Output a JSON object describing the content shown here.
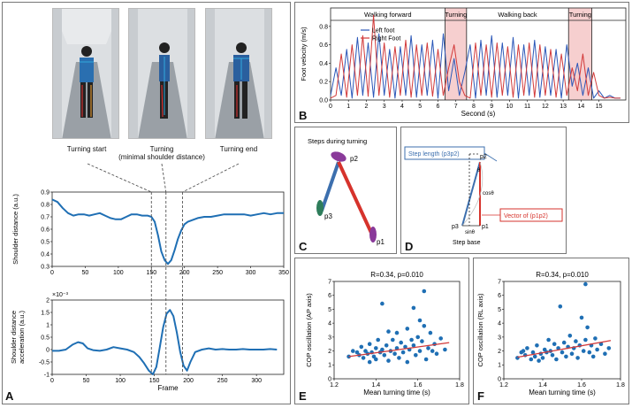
{
  "figure": {
    "panels": {
      "a": {
        "letter": "A",
        "photo_captions": [
          "Turning start",
          "Turning",
          "(minimal shoulder distance)",
          "Turning end"
        ]
      },
      "b": {
        "letter": "B"
      },
      "c": {
        "letter": "C"
      },
      "d": {
        "letter": "D"
      },
      "e": {
        "letter": "E"
      },
      "f": {
        "letter": "F"
      }
    }
  },
  "chart_data": [
    {
      "id": "shoulder-distance",
      "type": "line",
      "ylabel": "Shoulder distance (a.u.)",
      "xlabel": "",
      "xlim": [
        0,
        350
      ],
      "ylim": [
        0.3,
        0.9
      ],
      "xticks": [
        0,
        50,
        100,
        150,
        200,
        250,
        300,
        350
      ],
      "yticks": [
        0.3,
        0.4,
        0.5,
        0.6,
        0.7,
        0.8,
        0.9
      ],
      "line_color": "#1f6fb4",
      "x": [
        0,
        8,
        16,
        24,
        32,
        40,
        48,
        56,
        64,
        72,
        80,
        88,
        96,
        104,
        112,
        120,
        128,
        136,
        144,
        150,
        155,
        160,
        165,
        170,
        175,
        180,
        185,
        190,
        195,
        200,
        205,
        210,
        220,
        230,
        240,
        250,
        260,
        270,
        280,
        290,
        300,
        310,
        320,
        330,
        340,
        350
      ],
      "y": [
        0.84,
        0.82,
        0.77,
        0.73,
        0.71,
        0.72,
        0.72,
        0.71,
        0.72,
        0.73,
        0.71,
        0.69,
        0.68,
        0.68,
        0.7,
        0.72,
        0.72,
        0.71,
        0.71,
        0.7,
        0.66,
        0.55,
        0.42,
        0.35,
        0.32,
        0.35,
        0.43,
        0.52,
        0.59,
        0.64,
        0.66,
        0.67,
        0.69,
        0.7,
        0.7,
        0.71,
        0.72,
        0.72,
        0.72,
        0.72,
        0.71,
        0.72,
        0.73,
        0.72,
        0.73,
        0.73
      ]
    },
    {
      "id": "shoulder-acceleration",
      "type": "line",
      "ylabel": "Shoulder distance acceleration (a.u.)",
      "xlabel": "Frame",
      "exponent_label": "×10⁻³",
      "xlim": [
        0,
        340
      ],
      "ylim": [
        -1,
        2
      ],
      "xticks": [
        0,
        50,
        100,
        150,
        200,
        250,
        300
      ],
      "yticks": [
        -1,
        -0.5,
        0,
        0.5,
        1,
        1.5,
        2
      ],
      "line_color": "#1f6fb4",
      "x": [
        0,
        10,
        20,
        30,
        38,
        45,
        52,
        60,
        70,
        80,
        90,
        100,
        110,
        120,
        128,
        135,
        142,
        148,
        153,
        158,
        163,
        168,
        173,
        178,
        183,
        188,
        193,
        198,
        203,
        210,
        220,
        230,
        240,
        250,
        260,
        270,
        280,
        290,
        300,
        310,
        320,
        330
      ],
      "y": [
        -0.05,
        -0.05,
        0.0,
        0.2,
        0.3,
        0.25,
        0.05,
        -0.02,
        -0.05,
        0.0,
        0.1,
        0.05,
        0.0,
        -0.1,
        -0.3,
        -0.55,
        -0.85,
        -1.0,
        -0.7,
        0.1,
        0.9,
        1.45,
        1.6,
        1.35,
        0.7,
        -0.1,
        -0.65,
        -0.85,
        -0.5,
        -0.1,
        0.0,
        0.05,
        0.0,
        0.02,
        0.0,
        0.0,
        0.02,
        0.0,
        0.0,
        0.0,
        0.02,
        0.0
      ]
    },
    {
      "id": "foot-velocity",
      "type": "line",
      "ylabel": "Foot velocity (m/s)",
      "xlabel": "Second (s)",
      "xlim": [
        0,
        16.5
      ],
      "ylim": [
        0,
        1
      ],
      "xticks": [
        0,
        1,
        2,
        3,
        4,
        5,
        6,
        7,
        8,
        9,
        10,
        11,
        12,
        13,
        14,
        15
      ],
      "yticks": [
        0,
        0.2,
        0.4,
        0.6,
        0.8
      ],
      "phases": [
        {
          "label": "Walking forward",
          "start": 0,
          "end": 6.4,
          "shaded": false
        },
        {
          "label": "Turning",
          "start": 6.4,
          "end": 7.6,
          "shaded": true
        },
        {
          "label": "Walking back",
          "start": 7.6,
          "end": 13.3,
          "shaded": false
        },
        {
          "label": "Turning",
          "start": 13.3,
          "end": 14.6,
          "shaded": true
        }
      ],
      "series": [
        {
          "name": "Left foot",
          "color": "#2b57b8",
          "x": [
            0,
            0.3,
            0.6,
            0.9,
            1.2,
            1.5,
            1.8,
            2.1,
            2.4,
            2.7,
            3.0,
            3.3,
            3.6,
            3.9,
            4.2,
            4.5,
            4.8,
            5.1,
            5.4,
            5.7,
            6.0,
            6.3,
            6.6,
            6.9,
            7.2,
            7.5,
            7.8,
            8.1,
            8.4,
            8.7,
            9.0,
            9.3,
            9.6,
            9.9,
            10.2,
            10.5,
            10.8,
            11.1,
            11.4,
            11.7,
            12.0,
            12.3,
            12.6,
            12.9,
            13.2,
            13.5,
            13.8,
            14.1,
            14.4,
            14.7,
            15.0,
            15.3,
            15.6,
            15.9,
            16.2
          ],
          "y": [
            0.05,
            0.35,
            0.05,
            0.55,
            0.02,
            0.68,
            0.05,
            0.62,
            0.03,
            0.72,
            0.05,
            0.55,
            0.02,
            0.58,
            0.05,
            0.7,
            0.03,
            0.6,
            0.05,
            0.65,
            0.02,
            0.72,
            0.1,
            0.45,
            0.05,
            0.3,
            0.6,
            0.02,
            0.65,
            0.05,
            0.7,
            0.03,
            0.62,
            0.05,
            0.68,
            0.02,
            0.6,
            0.05,
            0.65,
            0.03,
            0.58,
            0.05,
            0.55,
            0.02,
            0.6,
            0.15,
            0.4,
            0.05,
            0.35,
            0.02,
            0.1,
            0.02,
            0.05,
            0.02,
            0.02
          ]
        },
        {
          "name": "Right Foot",
          "color": "#d23a3a",
          "x": [
            0,
            0.3,
            0.6,
            0.9,
            1.2,
            1.5,
            1.8,
            2.1,
            2.4,
            2.7,
            3.0,
            3.3,
            3.6,
            3.9,
            4.2,
            4.5,
            4.8,
            5.1,
            5.4,
            5.7,
            6.0,
            6.3,
            6.6,
            6.9,
            7.2,
            7.5,
            7.8,
            8.1,
            8.4,
            8.7,
            9.0,
            9.3,
            9.6,
            9.9,
            10.2,
            10.5,
            10.8,
            11.1,
            11.4,
            11.7,
            12.0,
            12.3,
            12.6,
            12.9,
            13.2,
            13.5,
            13.8,
            14.1,
            14.4,
            14.7,
            15.0,
            15.3,
            15.6,
            15.9,
            16.2
          ],
          "y": [
            0.02,
            0.05,
            0.5,
            0.03,
            0.6,
            0.05,
            0.7,
            0.04,
            0.92,
            0.05,
            0.62,
            0.03,
            0.58,
            0.05,
            0.65,
            0.03,
            0.6,
            0.05,
            0.62,
            0.04,
            0.55,
            0.05,
            0.35,
            0.6,
            0.2,
            0.05,
            0.02,
            0.62,
            0.05,
            0.6,
            0.03,
            0.62,
            0.05,
            0.58,
            0.03,
            0.6,
            0.05,
            0.62,
            0.03,
            0.6,
            0.05,
            0.55,
            0.03,
            0.5,
            0.05,
            0.35,
            0.1,
            0.5,
            0.05,
            0.3,
            0.05,
            0.02,
            0.03,
            0.02,
            0.02
          ]
        }
      ]
    },
    {
      "id": "cop-ap",
      "type": "scatter",
      "annotation": "R=0.34, p=0.010",
      "ylabel": "COP oscillation (AP axis)",
      "xlabel": "Mean turning time (s)",
      "xlim": [
        1.2,
        1.8
      ],
      "ylim": [
        0,
        7
      ],
      "xticks": [
        1.2,
        1.4,
        1.6,
        1.8
      ],
      "yticks": [
        0,
        1,
        2,
        3,
        4,
        5,
        6,
        7
      ],
      "point_color": "#1f6fb4",
      "fit_color": "#d23a3a",
      "fit": [
        [
          1.27,
          1.6
        ],
        [
          1.75,
          2.6
        ]
      ],
      "points": [
        [
          1.27,
          1.6
        ],
        [
          1.29,
          2.0
        ],
        [
          1.31,
          1.9
        ],
        [
          1.32,
          1.7
        ],
        [
          1.33,
          2.3
        ],
        [
          1.34,
          1.5
        ],
        [
          1.35,
          2.0
        ],
        [
          1.36,
          1.8
        ],
        [
          1.37,
          2.5
        ],
        [
          1.37,
          1.2
        ],
        [
          1.38,
          1.9
        ],
        [
          1.39,
          1.6
        ],
        [
          1.4,
          2.2
        ],
        [
          1.4,
          1.4
        ],
        [
          1.41,
          2.8
        ],
        [
          1.42,
          1.9
        ],
        [
          1.43,
          5.4
        ],
        [
          1.43,
          2.1
        ],
        [
          1.44,
          1.7
        ],
        [
          1.45,
          2.4
        ],
        [
          1.46,
          3.4
        ],
        [
          1.46,
          1.3
        ],
        [
          1.47,
          2.0
        ],
        [
          1.48,
          2.8
        ],
        [
          1.49,
          1.8
        ],
        [
          1.5,
          3.3
        ],
        [
          1.5,
          2.2
        ],
        [
          1.51,
          1.5
        ],
        [
          1.52,
          2.6
        ],
        [
          1.53,
          1.9
        ],
        [
          1.54,
          2.3
        ],
        [
          1.55,
          3.6
        ],
        [
          1.55,
          1.2
        ],
        [
          1.56,
          2.1
        ],
        [
          1.57,
          2.8
        ],
        [
          1.58,
          5.1
        ],
        [
          1.58,
          2.4
        ],
        [
          1.59,
          1.7
        ],
        [
          1.6,
          3.0
        ],
        [
          1.61,
          4.2
        ],
        [
          1.61,
          2.0
        ],
        [
          1.62,
          2.7
        ],
        [
          1.63,
          6.3
        ],
        [
          1.63,
          3.8
        ],
        [
          1.64,
          1.4
        ],
        [
          1.65,
          2.2
        ],
        [
          1.66,
          3.3
        ],
        [
          1.67,
          2.0
        ],
        [
          1.68,
          2.5
        ],
        [
          1.69,
          1.8
        ],
        [
          1.71,
          2.9
        ],
        [
          1.73,
          2.1
        ]
      ]
    },
    {
      "id": "cop-rl",
      "type": "scatter",
      "annotation": "R=0.34, p=0.010",
      "ylabel": "COP oscillation (RL axis)",
      "xlabel": "Mean turning time (s)",
      "xlim": [
        1.2,
        1.8
      ],
      "ylim": [
        0,
        7
      ],
      "xticks": [
        1.2,
        1.4,
        1.6,
        1.8
      ],
      "yticks": [
        0,
        1,
        2,
        3,
        4,
        5,
        6,
        7
      ],
      "point_color": "#1f6fb4",
      "fit_color": "#d23a3a",
      "fit": [
        [
          1.27,
          1.55
        ],
        [
          1.75,
          2.75
        ]
      ],
      "points": [
        [
          1.27,
          1.5
        ],
        [
          1.29,
          1.9
        ],
        [
          1.3,
          2.0
        ],
        [
          1.31,
          1.7
        ],
        [
          1.32,
          2.2
        ],
        [
          1.34,
          1.4
        ],
        [
          1.35,
          1.9
        ],
        [
          1.36,
          1.6
        ],
        [
          1.37,
          2.4
        ],
        [
          1.38,
          1.3
        ],
        [
          1.39,
          1.8
        ],
        [
          1.4,
          1.5
        ],
        [
          1.41,
          2.1
        ],
        [
          1.42,
          1.9
        ],
        [
          1.43,
          2.8
        ],
        [
          1.44,
          2.0
        ],
        [
          1.45,
          1.7
        ],
        [
          1.46,
          2.5
        ],
        [
          1.47,
          1.4
        ],
        [
          1.48,
          2.2
        ],
        [
          1.49,
          5.2
        ],
        [
          1.5,
          1.9
        ],
        [
          1.51,
          2.6
        ],
        [
          1.52,
          1.6
        ],
        [
          1.53,
          2.3
        ],
        [
          1.54,
          3.1
        ],
        [
          1.55,
          1.8
        ],
        [
          1.56,
          2.2
        ],
        [
          1.57,
          2.7
        ],
        [
          1.58,
          1.5
        ],
        [
          1.59,
          2.4
        ],
        [
          1.6,
          4.4
        ],
        [
          1.61,
          2.0
        ],
        [
          1.62,
          6.8
        ],
        [
          1.62,
          2.8
        ],
        [
          1.63,
          3.7
        ],
        [
          1.64,
          1.9
        ],
        [
          1.65,
          2.4
        ],
        [
          1.66,
          1.6
        ],
        [
          1.67,
          2.9
        ],
        [
          1.68,
          2.1
        ],
        [
          1.7,
          2.5
        ],
        [
          1.72,
          1.8
        ],
        [
          1.74,
          2.2
        ]
      ]
    }
  ],
  "diagram_c": {
    "title": "Steps during turning",
    "points": [
      "p1",
      "p2",
      "p3"
    ],
    "colors": {
      "p2p3": "#3c6fae",
      "p1p2": "#d6332c",
      "p2": "#8a3a9a",
      "p3": "#2e7d5b",
      "p1": "#8a3a9a"
    }
  },
  "diagram_d": {
    "step_length_label": "Step length",
    "step_length_vector": "(p3p2)",
    "vector_label": "Vector of",
    "vector_name": "(p1p2)",
    "p1": "p1",
    "p2": "p2",
    "p3": "p3",
    "theta": "θ",
    "cos": "cosθ",
    "sin": "sinθ",
    "step_base": "Step base",
    "colors": {
      "step": "#3c6fae",
      "vector": "#d6332c"
    }
  }
}
